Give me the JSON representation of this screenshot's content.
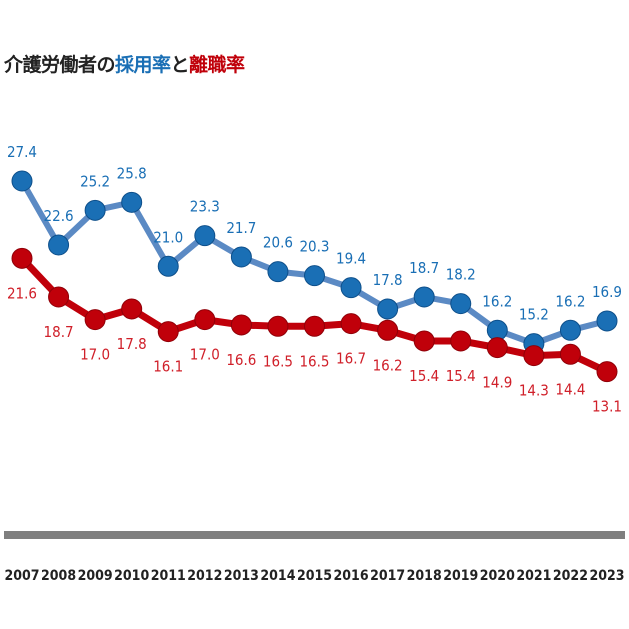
{
  "title": {
    "part1": "介護労働者の",
    "part2": "採用率",
    "part3": "と",
    "part4": "離職率"
  },
  "colors": {
    "hire_line": "#5b8ac4",
    "hire_marker": "#1a6fb5",
    "hire_label": "#1a6fb5",
    "leave_line": "#c0000a",
    "leave_marker": "#c0000a",
    "leave_label": "#d0202a",
    "axis": "#7f7f7f"
  },
  "chart_data": {
    "type": "line",
    "categories": [
      "2007",
      "2008",
      "2009",
      "2010",
      "2011",
      "2012",
      "2013",
      "2014",
      "2015",
      "2016",
      "2017",
      "2018",
      "2019",
      "2020",
      "2021",
      "2022",
      "2023"
    ],
    "series": [
      {
        "name": "採用率",
        "values": [
          27.4,
          22.6,
          25.2,
          25.8,
          21.0,
          23.3,
          21.7,
          20.6,
          20.3,
          19.4,
          17.8,
          18.7,
          18.2,
          16.2,
          15.2,
          16.2,
          16.9
        ]
      },
      {
        "name": "離職率",
        "values": [
          21.6,
          18.7,
          17.0,
          17.8,
          16.1,
          17.0,
          16.6,
          16.5,
          16.5,
          16.7,
          16.2,
          15.4,
          15.4,
          14.9,
          14.3,
          14.4,
          13.1
        ]
      }
    ],
    "grid": false,
    "legend": "none"
  }
}
